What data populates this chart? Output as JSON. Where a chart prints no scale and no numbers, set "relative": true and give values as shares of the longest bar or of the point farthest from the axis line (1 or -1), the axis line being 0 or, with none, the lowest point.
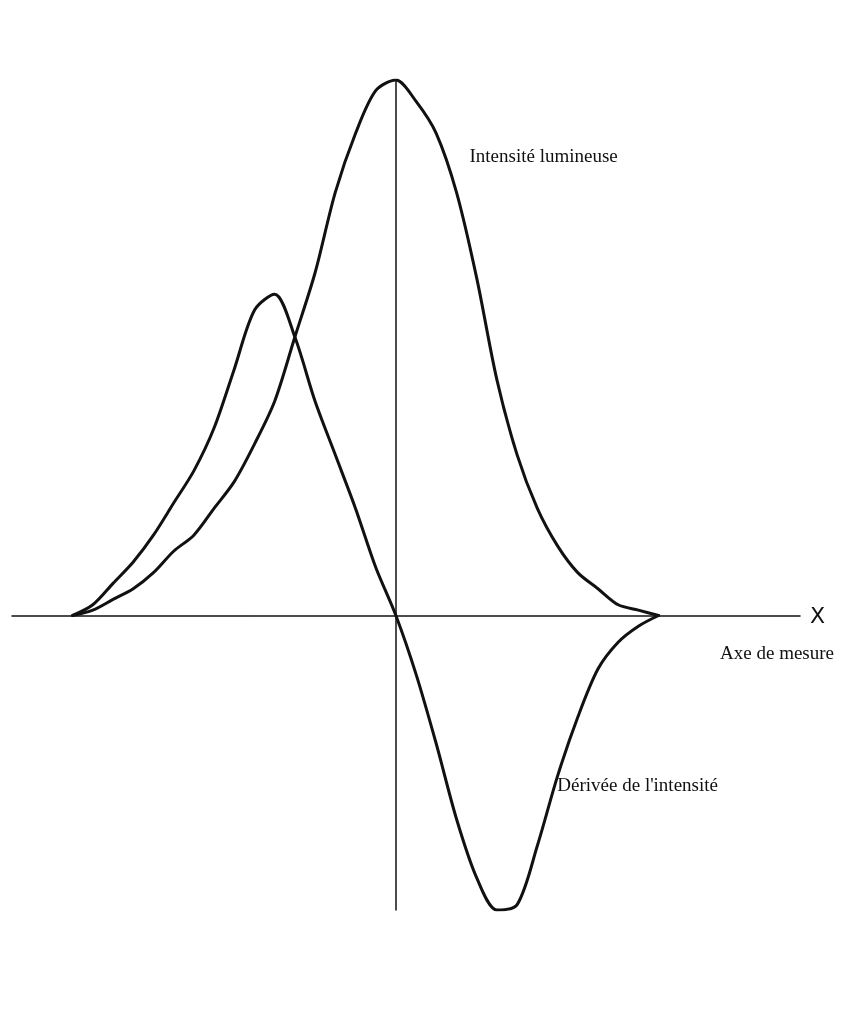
{
  "chart_data": {
    "type": "line",
    "relative": true,
    "xlabel": "X",
    "marker": "none",
    "line_style": "solid",
    "grid": false,
    "legend": false,
    "categories": [
      null,
      null,
      null,
      null,
      null,
      null,
      null,
      null,
      null,
      null,
      null,
      null,
      null,
      null,
      null,
      null,
      null,
      null,
      null,
      null,
      null,
      null,
      null,
      null,
      null,
      null,
      null,
      null,
      null,
      null,
      null,
      null,
      null,
      null,
      null,
      null,
      null,
      null,
      null,
      null
    ],
    "series": [
      {
        "name": "Intensité lumineuse",
        "color": "#111111",
        "values": [
          null,
          null,
          null,
          0,
          0.01,
          0.03,
          0.05,
          0.08,
          0.12,
          0.15,
          0.2,
          0.25,
          0.32,
          0.4,
          0.52,
          0.64,
          0.79,
          0.9,
          0.98,
          1.0,
          0.96,
          0.9,
          0.79,
          0.63,
          0.44,
          0.3,
          0.2,
          0.13,
          0.08,
          0.05,
          0.02,
          0.01,
          0,
          null,
          null,
          null,
          null,
          null,
          null,
          null
        ]
      },
      {
        "name": "Dérivée de l'intensité",
        "color": "#111111",
        "values": [
          null,
          null,
          null,
          0,
          0.02,
          0.06,
          0.1,
          0.15,
          0.21,
          0.27,
          0.35,
          0.46,
          0.57,
          0.6,
          0.52,
          0.4,
          0.3,
          0.2,
          0.09,
          0,
          -0.11,
          -0.24,
          -0.38,
          -0.49,
          -0.55,
          -0.54,
          -0.43,
          -0.3,
          -0.19,
          -0.1,
          -0.05,
          -0.02,
          0,
          null,
          null,
          null,
          null,
          null,
          null,
          null
        ]
      }
    ],
    "annotations": [
      "Axe de mesure"
    ]
  }
}
